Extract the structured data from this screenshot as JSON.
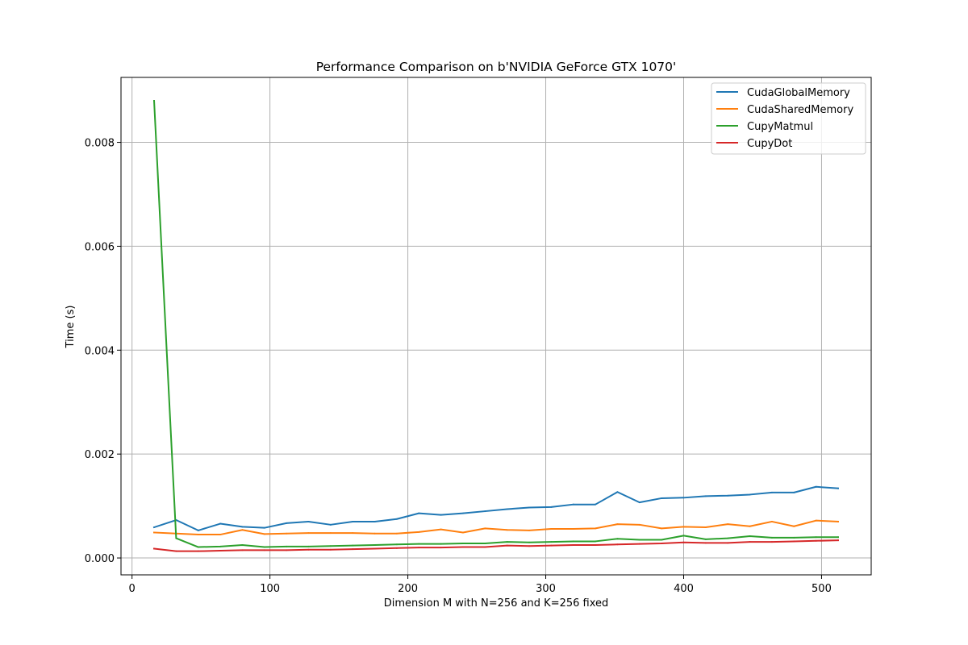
{
  "chart_data": {
    "type": "line",
    "title": "Performance Comparison on b'NVIDIA GeForce GTX 1070'",
    "xlabel": "Dimension M with N=256 and K=256 fixed",
    "ylabel": "Time (s)",
    "xlim": [
      -8,
      536
    ],
    "ylim": [
      -0.000325,
      0.00925
    ],
    "xticks": [
      0,
      100,
      200,
      300,
      400,
      500
    ],
    "xtick_labels": [
      "0",
      "100",
      "200",
      "300",
      "400",
      "500"
    ],
    "yticks": [
      0.0,
      0.002,
      0.004,
      0.006,
      0.008
    ],
    "ytick_labels": [
      "0.000",
      "0.002",
      "0.004",
      "0.006",
      "0.008"
    ],
    "grid": true,
    "legend_position": "top-right",
    "x": [
      16,
      32,
      48,
      64,
      80,
      96,
      112,
      128,
      144,
      160,
      176,
      192,
      208,
      224,
      240,
      256,
      272,
      288,
      304,
      320,
      336,
      352,
      368,
      384,
      400,
      416,
      432,
      448,
      464,
      480,
      496,
      512
    ],
    "series": [
      {
        "name": "CudaGlobalMemory",
        "color": "#1f77b4",
        "values": [
          0.00059,
          0.00073,
          0.00053,
          0.00066,
          0.0006,
          0.00058,
          0.00067,
          0.0007,
          0.00064,
          0.0007,
          0.0007,
          0.00075,
          0.00086,
          0.00083,
          0.00086,
          0.0009,
          0.00094,
          0.00097,
          0.00098,
          0.00103,
          0.00103,
          0.00127,
          0.00107,
          0.00115,
          0.00116,
          0.00119,
          0.0012,
          0.00122,
          0.00126,
          0.00126,
          0.00137,
          0.00134
        ]
      },
      {
        "name": "CudaSharedMemory",
        "color": "#ff7f0e",
        "values": [
          0.00049,
          0.00047,
          0.00045,
          0.00045,
          0.00054,
          0.00046,
          0.00047,
          0.00048,
          0.00048,
          0.00048,
          0.00047,
          0.00047,
          0.0005,
          0.00055,
          0.00049,
          0.00057,
          0.00054,
          0.00053,
          0.00056,
          0.00056,
          0.00057,
          0.00065,
          0.00064,
          0.00057,
          0.0006,
          0.00059,
          0.00065,
          0.00061,
          0.0007,
          0.00061,
          0.00072,
          0.0007
        ]
      },
      {
        "name": "CupyMatmul",
        "color": "#2ca02c",
        "values": [
          0.0088,
          0.00038,
          0.00021,
          0.00022,
          0.00025,
          0.00021,
          0.00022,
          0.00022,
          0.00023,
          0.00024,
          0.00025,
          0.00026,
          0.00027,
          0.00027,
          0.00028,
          0.00028,
          0.00031,
          0.0003,
          0.00031,
          0.00032,
          0.00032,
          0.00037,
          0.00035,
          0.00035,
          0.00043,
          0.00036,
          0.00038,
          0.00042,
          0.00039,
          0.00039,
          0.0004,
          0.0004
        ]
      },
      {
        "name": "CupyDot",
        "color": "#d62728",
        "values": [
          0.00018,
          0.00013,
          0.00013,
          0.00014,
          0.00015,
          0.00015,
          0.00015,
          0.00016,
          0.00016,
          0.00017,
          0.00018,
          0.00019,
          0.0002,
          0.0002,
          0.00021,
          0.00021,
          0.00024,
          0.00023,
          0.00024,
          0.00025,
          0.00025,
          0.00026,
          0.00027,
          0.00028,
          0.0003,
          0.00029,
          0.00029,
          0.00031,
          0.00031,
          0.00032,
          0.00033,
          0.00034
        ]
      }
    ]
  }
}
